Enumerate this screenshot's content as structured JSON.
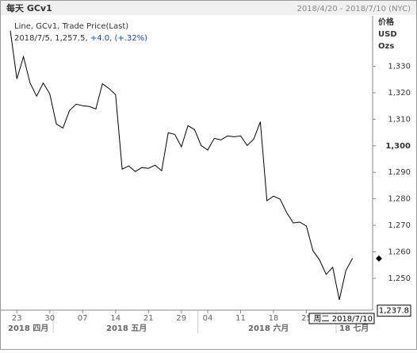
{
  "header": {
    "title": "每天 GCv1",
    "range": "2018/4/20 - 2018/7/10 (NYC)"
  },
  "chart_data": {
    "type": "line",
    "legend": {
      "line1": "Line, GCv1, Trade Price(Last)",
      "point": "2018/7/5, 1,257.5,",
      "change": "+4.0, (+.32%)"
    },
    "axis_labels": [
      "价格",
      "USD",
      "Ozs"
    ],
    "categories": [
      null,
      "23",
      null,
      null,
      null,
      null,
      "30",
      null,
      null,
      null,
      null,
      "07",
      null,
      null,
      null,
      null,
      "14",
      null,
      null,
      null,
      null,
      "21",
      null,
      null,
      null,
      null,
      "29",
      null,
      null,
      null,
      "04",
      null,
      null,
      null,
      null,
      "11",
      null,
      null,
      null,
      null,
      "18",
      null,
      null,
      null,
      null,
      "25",
      null,
      null,
      null,
      null,
      null,
      null,
      null
    ],
    "months": [
      "2018 四月",
      "2018 五月",
      "2018 六月",
      "18 七月"
    ],
    "series": [
      {
        "name": "GCv1",
        "color": "#000000",
        "values": [
          1343.4,
          1325.2,
          1333.6,
          1323.7,
          1318.7,
          1323.7,
          1319.6,
          1308.2,
          1306.7,
          1313.3,
          1315.7,
          1315.1,
          1314.8,
          1313.9,
          1323.4,
          1321.6,
          1319.3,
          1291.2,
          1292.4,
          1290.3,
          1291.8,
          1291.5,
          1292.7,
          1290.6,
          1304.9,
          1304.3,
          1299.6,
          1307.6,
          1306.1,
          1300.1,
          1298.4,
          1302.8,
          1302.2,
          1303.7,
          1303.4,
          1303.7,
          1300.1,
          1302.5,
          1309.1,
          1279.3,
          1281.0,
          1279.9,
          1274.8,
          1270.9,
          1271.2,
          1269.7,
          1260.4,
          1256.9,
          1251.5,
          1254.2,
          1241.9,
          1253.0,
          1257.5
        ]
      }
    ],
    "ylim": [
      1238,
      1349
    ],
    "yticks": [
      {
        "value": 1250,
        "label": "1,250"
      },
      {
        "value": 1260,
        "label": "1,260"
      },
      {
        "value": 1270,
        "label": "1,270"
      },
      {
        "value": 1280,
        "label": "1,280"
      },
      {
        "value": 1290,
        "label": "1,290"
      },
      {
        "value": 1300,
        "label": "1,300"
      },
      {
        "value": 1310,
        "label": "1,310"
      },
      {
        "value": 1320,
        "label": "1,320"
      },
      {
        "value": 1330,
        "label": "1,330"
      }
    ],
    "last_value": {
      "value": 1237.8,
      "label": "1,237.8"
    },
    "crosshair": "周二 2018/7/10"
  }
}
